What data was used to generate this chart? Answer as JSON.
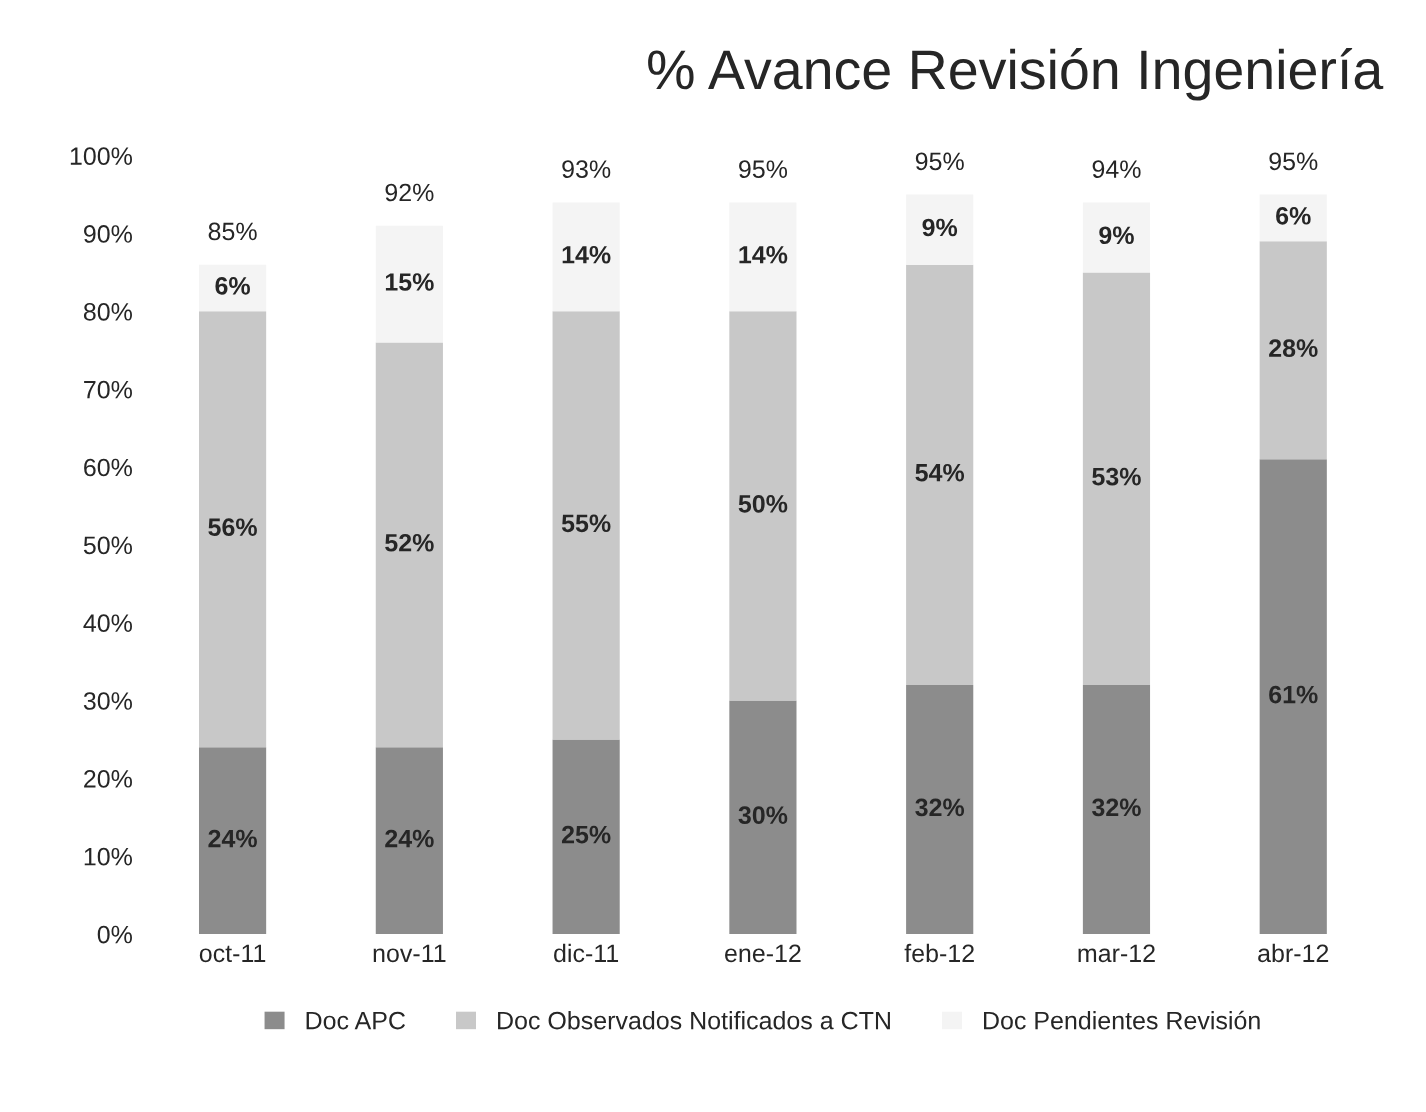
{
  "chart_data": {
    "type": "bar",
    "title": "% Avance Revisión Ingeniería",
    "stacked": true,
    "categories": [
      "oct-11",
      "nov-11",
      "dic-11",
      "ene-12",
      "feb-12",
      "mar-12",
      "abr-12"
    ],
    "series": [
      {
        "name": "Doc APC",
        "color": "#8c8c8c",
        "values": [
          24,
          24,
          25,
          30,
          32,
          32,
          61
        ],
        "value_labels": [
          "24%",
          "24%",
          "25%",
          "30%",
          "32%",
          "32%",
          "61%"
        ]
      },
      {
        "name": "Doc Observados Notificados a CTN",
        "color": "#c8c8c8",
        "values": [
          56,
          52,
          55,
          50,
          54,
          53,
          28
        ],
        "value_labels": [
          "56%",
          "52%",
          "55%",
          "50%",
          "54%",
          "53%",
          "28%"
        ]
      },
      {
        "name": "Doc Pendientes Revisión",
        "color": "#f4f4f4",
        "values": [
          6,
          15,
          14,
          14,
          9,
          9,
          6
        ],
        "value_labels": [
          "6%",
          "15%",
          "14%",
          "14%",
          "9%",
          "9%",
          "6%"
        ]
      }
    ],
    "totals": [
      "85%",
      "92%",
      "93%",
      "95%",
      "95%",
      "94%",
      "95%"
    ],
    "ylim": [
      0,
      100
    ],
    "yticks": [
      {
        "value": 0,
        "label": "0%"
      },
      {
        "value": 10,
        "label": "10%"
      },
      {
        "value": 20,
        "label": "20%"
      },
      {
        "value": 30,
        "label": "30%"
      },
      {
        "value": 40,
        "label": "40%"
      },
      {
        "value": 50,
        "label": "50%"
      },
      {
        "value": 60,
        "label": "60%"
      },
      {
        "value": 70,
        "label": "70%"
      },
      {
        "value": 80,
        "label": "80%"
      },
      {
        "value": 90,
        "label": "90%"
      },
      {
        "value": 100,
        "label": "100%"
      }
    ],
    "grid": false,
    "legend": "bottom"
  }
}
